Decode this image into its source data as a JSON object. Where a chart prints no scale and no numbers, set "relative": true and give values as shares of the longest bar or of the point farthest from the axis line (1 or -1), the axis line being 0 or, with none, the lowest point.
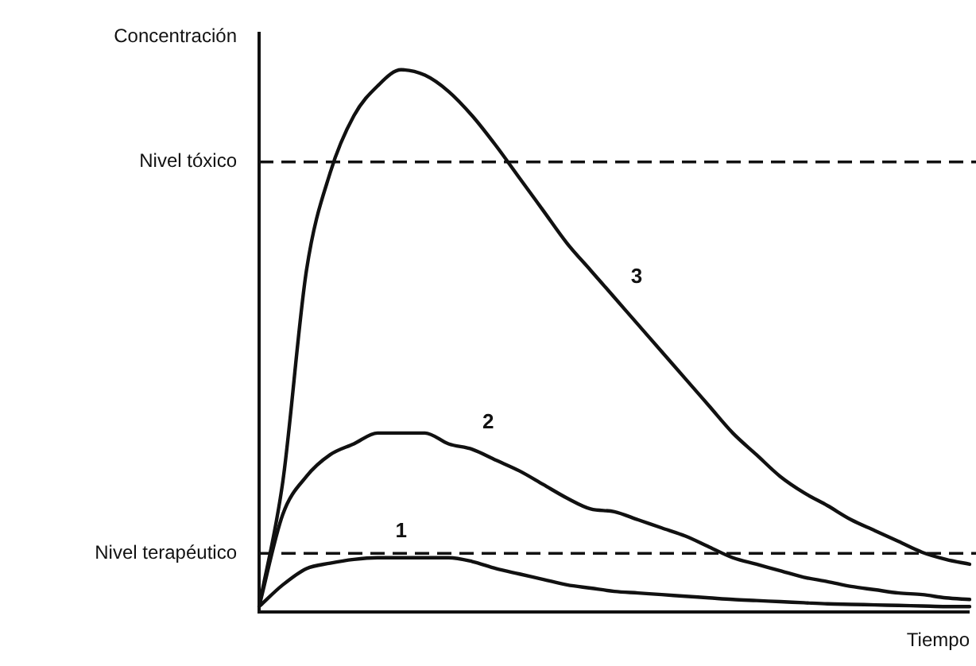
{
  "chart_data": {
    "type": "line",
    "relative": true,
    "xlabel": "Tiempo",
    "ylabel": "Concentración",
    "categories": [
      null,
      null,
      null,
      null,
      null,
      null,
      null,
      null,
      null,
      null,
      null,
      null,
      null,
      null,
      null,
      null,
      null,
      null,
      null,
      null,
      null,
      null,
      null,
      null,
      null,
      null,
      null,
      null,
      null,
      null,
      null
    ],
    "series": [
      {
        "name": "1",
        "color": "#111111",
        "values": [
          0.01,
          0.05,
          0.08,
          0.09,
          0.097,
          0.1,
          0.1,
          0.1,
          0.1,
          0.093,
          0.08,
          0.07,
          0.06,
          0.05,
          0.044,
          0.038,
          0.035,
          0.032,
          0.029,
          0.026,
          0.023,
          0.021,
          0.019,
          0.017,
          0.015,
          0.014,
          0.013,
          0.012,
          0.011,
          0.01,
          0.01
        ]
      },
      {
        "name": "2",
        "color": "#111111",
        "values": [
          0.01,
          0.18,
          0.25,
          0.29,
          0.31,
          0.33,
          0.33,
          0.33,
          0.31,
          0.3,
          0.28,
          0.26,
          0.235,
          0.21,
          0.19,
          0.185,
          0.17,
          0.155,
          0.14,
          0.12,
          0.1,
          0.088,
          0.076,
          0.064,
          0.056,
          0.047,
          0.041,
          0.035,
          0.032,
          0.026,
          0.023
        ]
      },
      {
        "name": "3",
        "color": "#111111",
        "values": [
          0.01,
          0.24,
          0.63,
          0.81,
          0.915,
          0.97,
          1,
          0.99,
          0.96,
          0.915,
          0.86,
          0.8,
          0.74,
          0.68,
          0.63,
          0.58,
          0.53,
          0.48,
          0.43,
          0.38,
          0.33,
          0.29,
          0.25,
          0.22,
          0.196,
          0.17,
          0.15,
          0.13,
          0.11,
          0.097,
          0.088
        ]
      }
    ],
    "ref_lines": [
      {
        "axis": "y",
        "value": 0.83,
        "label": "Nivel tóxico",
        "color": "#111111",
        "line_style": "dashed"
      },
      {
        "axis": "y",
        "value": 0.108,
        "label": "Nivel terapéutico",
        "color": "#111111",
        "line_style": "dashed"
      }
    ],
    "grid": false,
    "legend": false,
    "marker": "none",
    "line_style": "solid"
  }
}
